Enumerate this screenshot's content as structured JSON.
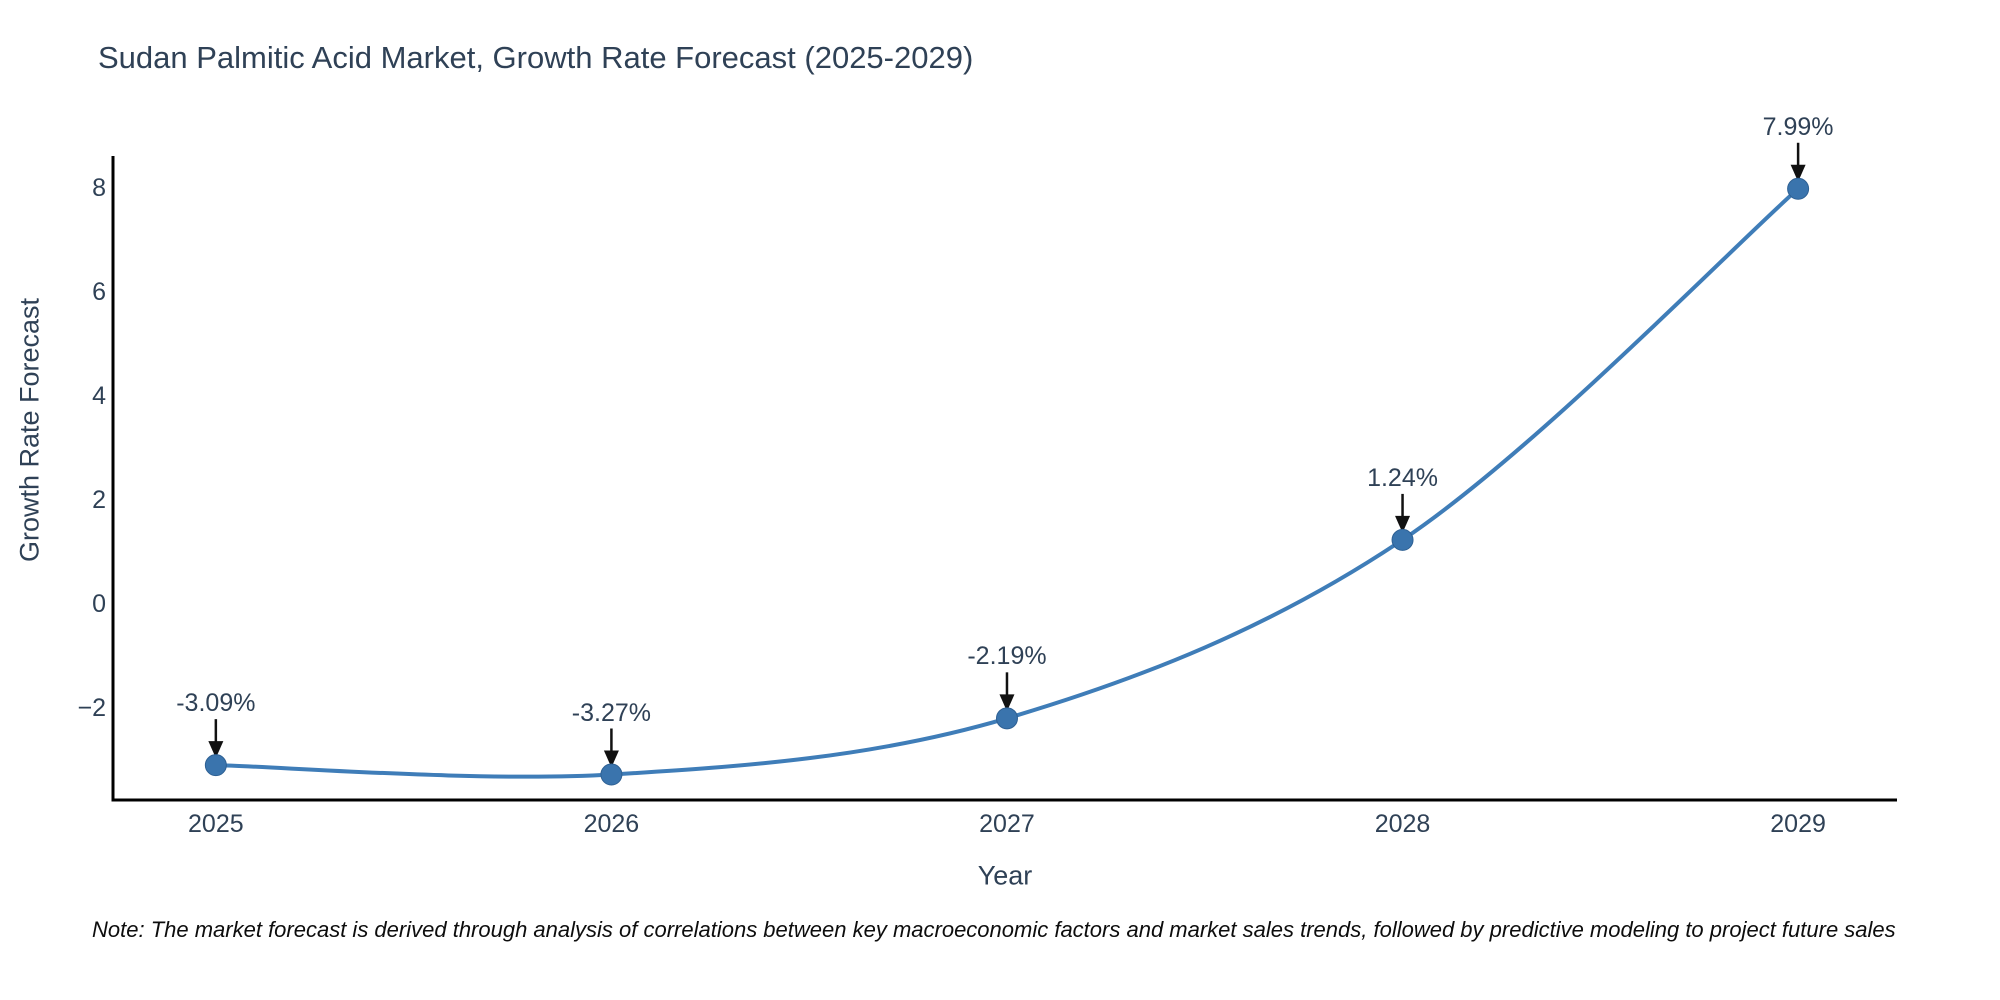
{
  "title": "Sudan Palmitic Acid Market, Growth Rate Forecast (2025-2029)",
  "note": "Note: The market forecast is derived through analysis of correlations between key macroeconomic factors and market sales trends, followed by predictive modeling to project future sales",
  "colors": {
    "text": "#2f4156",
    "line": "#3f7db8",
    "marker_fill": "#3a74ad",
    "marker_edge": "#2e6093",
    "axis": "#000000",
    "arrow": "#111111",
    "background": "#ffffff"
  },
  "chart_data": {
    "type": "line",
    "title": "Sudan Palmitic Acid Market, Growth Rate Forecast (2025-2029)",
    "xlabel": "Year",
    "ylabel": "Growth Rate Forecast",
    "x": [
      2025,
      2026,
      2027,
      2028,
      2029
    ],
    "y": [
      -3.09,
      -3.27,
      -2.19,
      1.24,
      7.99
    ],
    "point_labels": [
      "-3.09%",
      "-3.27%",
      "-2.19%",
      "1.24%",
      "7.99%"
    ],
    "xtick_labels": [
      "2025",
      "2026",
      "2027",
      "2028",
      "2029"
    ],
    "ytick_values": [
      8,
      6,
      4,
      2,
      0,
      -2
    ],
    "ytick_labels": [
      "8",
      "6",
      "4",
      "2",
      "0",
      "−2"
    ],
    "xlim": [
      2024.74,
      2029.25
    ],
    "ylim": [
      -3.76,
      8.62
    ],
    "grid": false,
    "legend": null,
    "annotations": "each point labeled with percentage and a downward black arrow"
  }
}
